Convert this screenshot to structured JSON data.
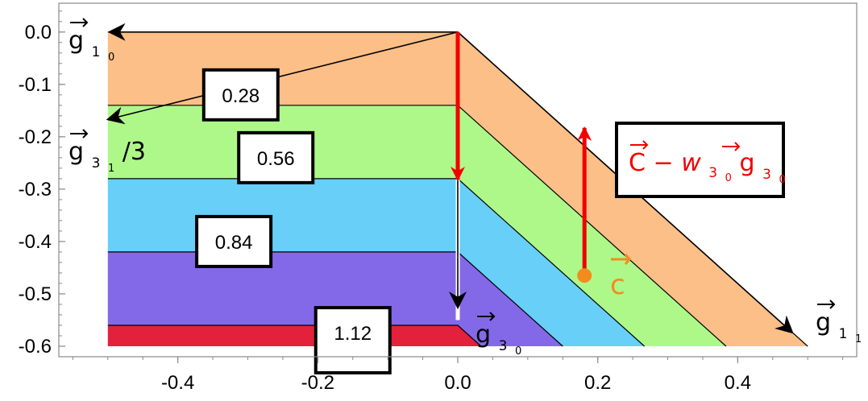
{
  "chart_data": {
    "type": "contour",
    "xlim": [
      -0.57,
      0.57
    ],
    "ylim": [
      -0.62,
      0.055
    ],
    "x_ticks": [
      "-0.4",
      "-0.2",
      "0.0",
      "0.2",
      "0.4"
    ],
    "x_tick_values": [
      -0.4,
      -0.2,
      0.0,
      0.2,
      0.4
    ],
    "y_ticks": [
      "0.0",
      "-0.1",
      "-0.2",
      "-0.3",
      "-0.4",
      "-0.5",
      "-0.6"
    ],
    "y_tick_values": [
      0.0,
      -0.1,
      -0.2,
      -0.3,
      -0.4,
      -0.5,
      -0.6
    ],
    "region": {
      "x_min": -0.5,
      "x_max": 0.5,
      "y_min": -0.6,
      "y_max": 0.0,
      "kink_x": 0.0,
      "slope": -1.2
    },
    "bands": [
      {
        "level_from": 0.0,
        "level_to": 0.28,
        "color": "#FBBF87"
      },
      {
        "level_from": 0.28,
        "level_to": 0.56,
        "color": "#AEF88A"
      },
      {
        "level_from": 0.56,
        "level_to": 0.84,
        "color": "#67CFF8"
      },
      {
        "level_from": 0.84,
        "level_to": 1.12,
        "color": "#8369E8"
      },
      {
        "level_from": 1.12,
        "level_to": 1.2,
        "color": "#E3213C"
      }
    ],
    "contour_lines": [
      {
        "level": 0.28,
        "label": "0.28",
        "label_at": [
          -0.31,
          -0.12
        ]
      },
      {
        "level": 0.56,
        "label": "0.56",
        "label_at": [
          -0.26,
          -0.24
        ]
      },
      {
        "level": 0.84,
        "label": "0.84",
        "label_at": [
          -0.32,
          -0.4
        ]
      },
      {
        "level": 1.12,
        "label": "1.12",
        "label_at": [
          -0.15,
          -0.574
        ]
      }
    ],
    "level_scale": -0.5,
    "vectors": {
      "g1_0": {
        "base": "g",
        "sub_base": "1",
        "sub_sub": "0",
        "suffix": "",
        "from": [
          0.0,
          0.0
        ],
        "to": [
          -0.5,
          0.0
        ]
      },
      "g3_1": {
        "base": "g",
        "sub_base": "3",
        "sub_sub": "1",
        "suffix": "/3",
        "from": [
          0.0,
          0.0
        ],
        "to": [
          -0.5,
          -0.167
        ]
      },
      "g1_1": {
        "base": "g",
        "sub_base": "1",
        "sub_sub": "1",
        "suffix": "",
        "from": [
          0.0,
          0.0
        ],
        "to": [
          0.5,
          -0.6
        ]
      },
      "g3_0": {
        "base": "g",
        "sub_base": "3",
        "sub_sub": "0",
        "suffix": "",
        "from": [
          0.0,
          0.0
        ],
        "to": [
          0.0,
          -0.6
        ]
      },
      "red_down": {
        "from": [
          0.0,
          0.0
        ],
        "to": [
          0.0,
          -0.282
        ]
      },
      "red_up": {
        "from": [
          0.181,
          -0.465
        ],
        "to": [
          0.181,
          -0.183
        ]
      }
    },
    "point_c": {
      "x": 0.181,
      "y": -0.465,
      "label": "c",
      "color": "#F28C1F"
    },
    "annotation": {
      "c_label": "C",
      "minus": "−",
      "w_label": "w",
      "w_sub_base": "3",
      "w_sub_sub": "0",
      "g_label": "g",
      "g_sub_base": "3",
      "g_sub_sub": "0",
      "color": "#F20000"
    }
  }
}
